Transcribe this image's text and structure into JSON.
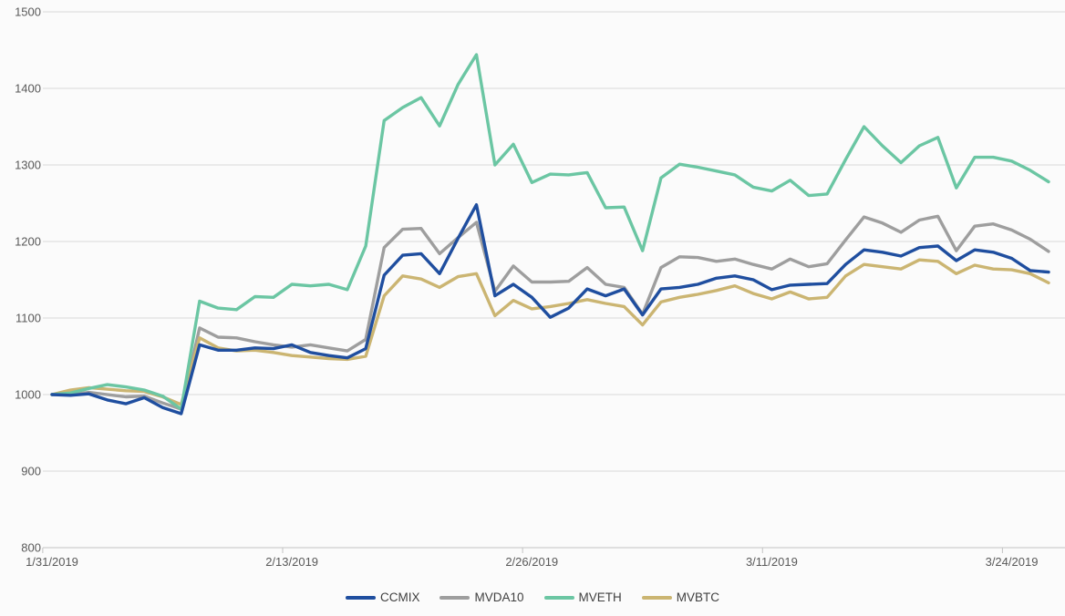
{
  "chart_data": {
    "type": "line",
    "title": "",
    "xlabel": "",
    "ylabel": "",
    "ylim": [
      800,
      1500
    ],
    "y_tick_step": 100,
    "y_tick_labels": [
      "800",
      "900",
      "1000",
      "1100",
      "1200",
      "1300",
      "1400",
      "1500"
    ],
    "grid": "horizontal",
    "legend_position": "bottom",
    "x_tick_indices": [
      0,
      13,
      26,
      39,
      52
    ],
    "x_tick_labels": [
      "1/31/2019",
      "2/13/2019",
      "2/26/2019",
      "3/11/2019",
      "3/24/2019"
    ],
    "x_dates": [
      "1/31/2019",
      "2/1/2019",
      "2/2/2019",
      "2/3/2019",
      "2/4/2019",
      "2/5/2019",
      "2/6/2019",
      "2/7/2019",
      "2/8/2019",
      "2/9/2019",
      "2/10/2019",
      "2/11/2019",
      "2/12/2019",
      "2/13/2019",
      "2/14/2019",
      "2/15/2019",
      "2/16/2019",
      "2/17/2019",
      "2/18/2019",
      "2/19/2019",
      "2/20/2019",
      "2/21/2019",
      "2/22/2019",
      "2/23/2019",
      "2/24/2019",
      "2/25/2019",
      "2/26/2019",
      "2/27/2019",
      "2/28/2019",
      "3/1/2019",
      "3/2/2019",
      "3/3/2019",
      "3/4/2019",
      "3/5/2019",
      "3/6/2019",
      "3/7/2019",
      "3/8/2019",
      "3/9/2019",
      "3/10/2019",
      "3/11/2019",
      "3/12/2019",
      "3/13/2019",
      "3/14/2019",
      "3/15/2019",
      "3/16/2019",
      "3/17/2019",
      "3/18/2019",
      "3/19/2019",
      "3/20/2019",
      "3/21/2019",
      "3/22/2019",
      "3/23/2019",
      "3/24/2019",
      "3/25/2019",
      "3/26/2019"
    ],
    "series": [
      {
        "name": "CCMIX",
        "color": "#1F4E9F",
        "values": [
          1000,
          999,
          1001,
          993,
          988,
          996,
          983,
          975,
          1065,
          1058,
          1058,
          1061,
          1060,
          1065,
          1055,
          1051,
          1048,
          1060,
          1156,
          1182,
          1184,
          1158,
          1204,
          1248,
          1129,
          1144,
          1127,
          1101,
          1113,
          1138,
          1129,
          1138,
          1104,
          1138,
          1140,
          1144,
          1152,
          1155,
          1150,
          1137,
          1143,
          1144,
          1145,
          1170,
          1189,
          1186,
          1181,
          1192,
          1194,
          1175,
          1189,
          1186,
          1178,
          1162,
          1160
        ]
      },
      {
        "name": "MVDA10",
        "color": "#9E9E9E",
        "values": [
          1000,
          1000,
          1003,
          1000,
          997,
          998,
          989,
          981,
          1087,
          1075,
          1074,
          1069,
          1065,
          1062,
          1065,
          1061,
          1057,
          1072,
          1192,
          1216,
          1217,
          1184,
          1205,
          1225,
          1135,
          1168,
          1147,
          1147,
          1148,
          1166,
          1144,
          1140,
          1105,
          1166,
          1180,
          1179,
          1174,
          1177,
          1170,
          1164,
          1177,
          1167,
          1171,
          1202,
          1232,
          1224,
          1212,
          1228,
          1233,
          1188,
          1220,
          1223,
          1215,
          1203,
          1187
        ]
      },
      {
        "name": "MVETH",
        "color": "#6BC6A3",
        "values": [
          1000,
          1002,
          1008,
          1013,
          1010,
          1006,
          998,
          981,
          1122,
          1113,
          1111,
          1128,
          1127,
          1144,
          1142,
          1144,
          1137,
          1194,
          1358,
          1375,
          1388,
          1351,
          1405,
          1444,
          1300,
          1327,
          1277,
          1288,
          1287,
          1290,
          1244,
          1245,
          1188,
          1283,
          1301,
          1297,
          1292,
          1287,
          1271,
          1266,
          1280,
          1260,
          1262,
          1307,
          1350,
          1325,
          1303,
          1325,
          1336,
          1270,
          1310,
          1310,
          1305,
          1293,
          1278
        ]
      },
      {
        "name": "MVBTC",
        "color": "#CBB572",
        "values": [
          1000,
          1006,
          1009,
          1007,
          1005,
          1004,
          997,
          987,
          1074,
          1061,
          1057,
          1058,
          1055,
          1051,
          1049,
          1047,
          1046,
          1050,
          1129,
          1155,
          1151,
          1140,
          1154,
          1158,
          1103,
          1123,
          1112,
          1115,
          1119,
          1124,
          1119,
          1115,
          1091,
          1121,
          1127,
          1131,
          1136,
          1142,
          1132,
          1125,
          1134,
          1125,
          1127,
          1155,
          1170,
          1167,
          1164,
          1176,
          1174,
          1158,
          1169,
          1164,
          1163,
          1158,
          1146
        ]
      }
    ],
    "colors": {
      "background": "#FBFBFB",
      "gridline": "#D9D9D9",
      "axis_line": "#C3C3C3",
      "tick_text": "#595959",
      "legend_text": "#404040"
    }
  }
}
